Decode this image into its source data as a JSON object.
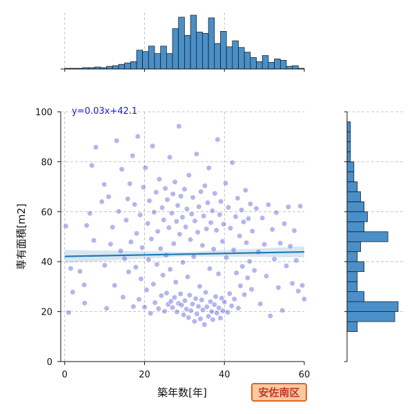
{
  "chart_data": {
    "type": "scatter",
    "title": "",
    "xlabel": "築年数[年]",
    "ylabel": "専有面積[m2]",
    "xlim": [
      -1,
      60
    ],
    "ylim": [
      0,
      100
    ],
    "x_ticks": [
      0,
      20,
      40,
      60
    ],
    "y_ticks": [
      0,
      20,
      40,
      60,
      80,
      100
    ],
    "grid": true,
    "regression": {
      "label": "y=0.03x+42.1",
      "slope": 0.03,
      "intercept": 42.1
    },
    "badge": "安佐南区",
    "colors": {
      "points": "#2b2bcc",
      "regression_line": "#1f77b4",
      "histogram_fill": "#4a8fc7",
      "badge_fill": "#fbc9a0",
      "badge_border": "#e0641d",
      "equation_text": "#1c1ccf"
    },
    "x_histogram": {
      "bin_edges": [
        0,
        1.5,
        3,
        4.5,
        6,
        7.5,
        9,
        10.5,
        12,
        13.5,
        15,
        16.5,
        18,
        19.5,
        21,
        22.5,
        24,
        25.5,
        27,
        28.5,
        30,
        31.5,
        33,
        34.5,
        36,
        37.5,
        39,
        40.5,
        42,
        43.5,
        45,
        46.5,
        48,
        49.5,
        51,
        52.5,
        54,
        55.5,
        57,
        58.5,
        60
      ],
      "counts": [
        1,
        1,
        1,
        2,
        2,
        3,
        2,
        4,
        5,
        7,
        9,
        11,
        28,
        26,
        34,
        23,
        34,
        23,
        60,
        77,
        50,
        80,
        55,
        53,
        76,
        38,
        56,
        33,
        42,
        32,
        25,
        17,
        11,
        20,
        10,
        15,
        13,
        4,
        5,
        1
      ]
    },
    "y_histogram": {
      "bin_edges": [
        12,
        16,
        20,
        24,
        28,
        32,
        36,
        40,
        44,
        48,
        52,
        56,
        60,
        64,
        68,
        72,
        76,
        80,
        84,
        88,
        92,
        96,
        100
      ],
      "counts": [
        3,
        14,
        15,
        5,
        3,
        3,
        5,
        3,
        4,
        12,
        5,
        6,
        5,
        4,
        3,
        2,
        2,
        1,
        1,
        1,
        1,
        0
      ]
    },
    "points": [
      [
        0.3,
        54.2
      ],
      [
        1.0,
        19.6
      ],
      [
        1.5,
        37.3
      ],
      [
        2.0,
        27.8
      ],
      [
        3.8,
        36.1
      ],
      [
        4.9,
        30.7
      ],
      [
        5.0,
        23.4
      ],
      [
        5.5,
        54.5
      ],
      [
        6.3,
        59.3
      ],
      [
        6.8,
        78.5
      ],
      [
        7.3,
        48.5
      ],
      [
        7.8,
        85.8
      ],
      [
        9.3,
        64.0
      ],
      [
        9.9,
        70.9
      ],
      [
        10.0,
        38.5
      ],
      [
        10.5,
        21.3
      ],
      [
        11.0,
        66.0
      ],
      [
        11.5,
        47.0
      ],
      [
        12.0,
        53.8
      ],
      [
        12.5,
        30.5
      ],
      [
        13.0,
        88.4
      ],
      [
        13.5,
        60.1
      ],
      [
        14.0,
        44.3
      ],
      [
        14.3,
        77.0
      ],
      [
        14.6,
        25.8
      ],
      [
        15.0,
        41.2
      ],
      [
        15.4,
        56.6
      ],
      [
        15.8,
        65.1
      ],
      [
        16.0,
        35.9
      ],
      [
        16.3,
        71.2
      ],
      [
        16.6,
        47.9
      ],
      [
        17.0,
        82.4
      ],
      [
        17.2,
        22.0
      ],
      [
        17.5,
        62.9
      ],
      [
        17.8,
        37.8
      ],
      [
        18.0,
        51.3
      ],
      [
        18.3,
        90.1
      ],
      [
        18.6,
        24.9
      ],
      [
        18.9,
        58.7
      ],
      [
        19.1,
        33.1
      ],
      [
        19.4,
        45.6
      ],
      [
        19.7,
        69.8
      ],
      [
        20.0,
        21.8
      ],
      [
        20.2,
        77.6
      ],
      [
        20.5,
        28.7
      ],
      [
        20.8,
        55.3
      ],
      [
        21.0,
        40.8
      ],
      [
        21.2,
        64.4
      ],
      [
        21.5,
        19.3
      ],
      [
        21.7,
        49.1
      ],
      [
        22.0,
        86.3
      ],
      [
        22.2,
        31.0
      ],
      [
        22.4,
        59.8
      ],
      [
        22.6,
        23.6
      ],
      [
        22.9,
        67.8
      ],
      [
        23.1,
        38.9
      ],
      [
        23.3,
        52.1
      ],
      [
        23.5,
        21.2
      ],
      [
        23.7,
        73.0
      ],
      [
        24.0,
        45.2
      ],
      [
        24.2,
        26.4
      ],
      [
        24.4,
        61.6
      ],
      [
        24.6,
        34.6
      ],
      [
        24.8,
        56.7
      ],
      [
        25.0,
        20.1
      ],
      [
        25.2,
        69.3
      ],
      [
        25.4,
        42.6
      ],
      [
        25.5,
        27.4
      ],
      [
        25.7,
        64.8
      ],
      [
        25.9,
        22.9
      ],
      [
        26.1,
        53.6
      ],
      [
        26.3,
        81.8
      ],
      [
        26.4,
        36.9
      ],
      [
        26.6,
        24.1
      ],
      [
        26.8,
        59.4
      ],
      [
        27.0,
        21.6
      ],
      [
        27.1,
        67.1
      ],
      [
        27.3,
        47.2
      ],
      [
        27.5,
        25.7
      ],
      [
        27.6,
        71.9
      ],
      [
        27.8,
        31.8
      ],
      [
        28.0,
        56.1
      ],
      [
        28.1,
        19.9
      ],
      [
        28.3,
        62.5
      ],
      [
        28.5,
        23.3
      ],
      [
        28.6,
        94.2
      ],
      [
        28.8,
        51.0
      ],
      [
        29.0,
        27.1
      ],
      [
        29.1,
        66.2
      ],
      [
        29.3,
        22.6
      ],
      [
        29.5,
        57.8
      ],
      [
        29.6,
        39.7
      ],
      [
        29.8,
        18.7
      ],
      [
        30.0,
        69.0
      ],
      [
        30.1,
        24.4
      ],
      [
        30.3,
        53.9
      ],
      [
        30.5,
        21.0
      ],
      [
        30.6,
        61.1
      ],
      [
        30.8,
        33.9
      ],
      [
        31.0,
        17.6
      ],
      [
        31.1,
        74.6
      ],
      [
        31.3,
        26.6
      ],
      [
        31.5,
        48.8
      ],
      [
        31.6,
        20.4
      ],
      [
        31.8,
        59.1
      ],
      [
        32.0,
        23.0
      ],
      [
        32.1,
        65.7
      ],
      [
        32.3,
        42.0
      ],
      [
        32.5,
        16.1
      ],
      [
        32.6,
        56.3
      ],
      [
        32.8,
        25.2
      ],
      [
        33.0,
        83.1
      ],
      [
        33.1,
        19.1
      ],
      [
        33.3,
        51.8
      ],
      [
        33.5,
        22.1
      ],
      [
        33.6,
        62.0
      ],
      [
        33.8,
        30.1
      ],
      [
        34.0,
        17.1
      ],
      [
        34.1,
        68.0
      ],
      [
        34.3,
        24.7
      ],
      [
        34.5,
        46.5
      ],
      [
        34.6,
        20.7
      ],
      [
        34.8,
        58.3
      ],
      [
        35.0,
        14.8
      ],
      [
        35.1,
        70.4
      ],
      [
        35.3,
        27.7
      ],
      [
        35.5,
        53.1
      ],
      [
        35.6,
        21.9
      ],
      [
        35.8,
        63.6
      ],
      [
        36.0,
        18.1
      ],
      [
        36.1,
        77.5
      ],
      [
        36.3,
        37.2
      ],
      [
        36.5,
        24.0
      ],
      [
        36.6,
        55.6
      ],
      [
        36.8,
        20.0
      ],
      [
        37.0,
        60.4
      ],
      [
        37.1,
        16.8
      ],
      [
        37.3,
        45.0
      ],
      [
        37.5,
        22.8
      ],
      [
        37.6,
        67.3
      ],
      [
        37.8,
        26.0
      ],
      [
        38.0,
        52.6
      ],
      [
        38.1,
        19.4
      ],
      [
        38.3,
        88.9
      ],
      [
        38.5,
        35.1
      ],
      [
        38.6,
        21.5
      ],
      [
        38.8,
        58.8
      ],
      [
        39.0,
        17.4
      ],
      [
        39.1,
        64.1
      ],
      [
        39.3,
        25.4
      ],
      [
        39.5,
        48.1
      ],
      [
        39.6,
        20.3
      ],
      [
        39.8,
        55.0
      ],
      [
        40.0,
        23.8
      ],
      [
        40.3,
        71.4
      ],
      [
        40.5,
        41.6
      ],
      [
        40.8,
        19.7
      ],
      [
        41.0,
        61.7
      ],
      [
        41.3,
        27.2
      ],
      [
        41.5,
        53.4
      ],
      [
        41.8,
        22.3
      ],
      [
        42.0,
        79.6
      ],
      [
        42.3,
        44.7
      ],
      [
        42.5,
        25.0
      ],
      [
        42.8,
        58.0
      ],
      [
        43.0,
        35.5
      ],
      [
        43.3,
        65.4
      ],
      [
        43.5,
        21.4
      ],
      [
        43.8,
        50.3
      ],
      [
        44.0,
        30.3
      ],
      [
        44.3,
        60.7
      ],
      [
        44.5,
        38.1
      ],
      [
        44.8,
        55.9
      ],
      [
        45.0,
        26.8
      ],
      [
        45.3,
        68.6
      ],
      [
        45.5,
        47.6
      ],
      [
        45.8,
        33.5
      ],
      [
        46.0,
        57.2
      ],
      [
        46.3,
        40.1
      ],
      [
        46.5,
        63.1
      ],
      [
        46.8,
        28.9
      ],
      [
        47.0,
        52.2
      ],
      [
        47.5,
        36.5
      ],
      [
        48.0,
        61.3
      ],
      [
        48.5,
        43.9
      ],
      [
        49.0,
        23.1
      ],
      [
        49.5,
        57.5
      ],
      [
        50.0,
        46.9
      ],
      [
        50.5,
        34.2
      ],
      [
        51.0,
        62.8
      ],
      [
        51.5,
        18.3
      ],
      [
        52.0,
        52.9
      ],
      [
        52.5,
        41.0
      ],
      [
        53.0,
        59.6
      ],
      [
        53.5,
        29.6
      ],
      [
        54.0,
        47.4
      ],
      [
        54.5,
        20.5
      ],
      [
        55.0,
        55.2
      ],
      [
        55.5,
        38.3
      ],
      [
        56.0,
        61.9
      ],
      [
        56.5,
        46.2
      ],
      [
        57.0,
        31.3
      ],
      [
        57.5,
        52.4
      ],
      [
        58.0,
        40.5
      ],
      [
        58.5,
        28.2
      ],
      [
        59.0,
        62.2
      ],
      [
        59.5,
        30.5
      ],
      [
        60.0,
        25.0
      ]
    ]
  }
}
